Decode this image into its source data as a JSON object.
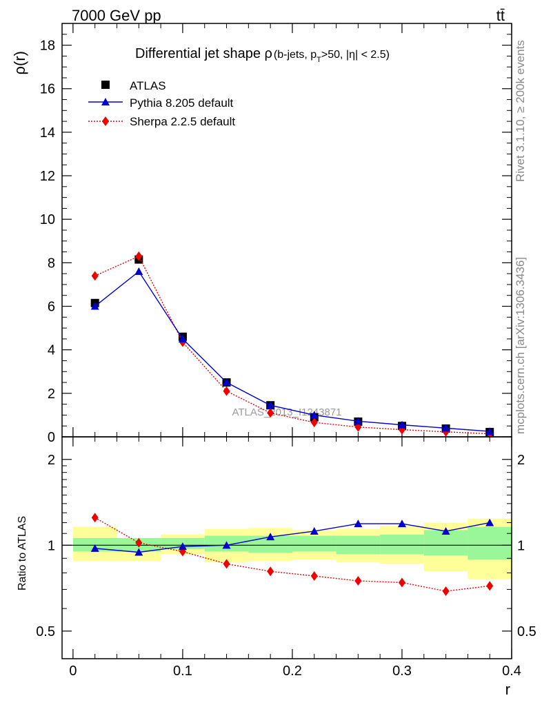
{
  "header": {
    "energy_label": "7000 GeV pp",
    "process_label": "tt̄"
  },
  "side_labels": {
    "rivet": "Rivet 3.1.10, ≥ 200k events",
    "mcplots": "mcplots.cern.ch [arXiv:1306.3436]"
  },
  "chart_data": [
    {
      "id": "main",
      "type": "line",
      "title_main": "Differential jet shape ρ",
      "title_p": "(b-jets, p",
      "title_sub": "T",
      "title_rest": ">50, |η| < 2.5)",
      "ylabel": "ρ(r)",
      "xlim": [
        -0.01,
        0.4
      ],
      "ylim": [
        0,
        19
      ],
      "yticks": [
        0,
        2,
        4,
        6,
        8,
        10,
        12,
        14,
        16,
        18
      ],
      "watermark": "ATLAS_2013_I1243871",
      "x": [
        0.02,
        0.06,
        0.1,
        0.14,
        0.18,
        0.22,
        0.26,
        0.3,
        0.34,
        0.38
      ],
      "series": [
        {
          "name": "ATLAS",
          "style": "data",
          "color": "#000000",
          "values": [
            6.15,
            8.15,
            4.6,
            2.5,
            1.45,
            0.9,
            0.7,
            0.5,
            0.38,
            0.22
          ]
        },
        {
          "name": "Pythia 8.205 default",
          "style": "solid",
          "marker": "triangle",
          "color": "#0000cc",
          "values": [
            6.0,
            7.6,
            4.5,
            2.5,
            1.45,
            1.0,
            0.72,
            0.55,
            0.4,
            0.25
          ]
        },
        {
          "name": "Sherpa 2.2.5 default",
          "style": "dotted",
          "marker": "diamond",
          "color": "#ee0000",
          "values": [
            7.4,
            8.3,
            4.35,
            2.1,
            1.1,
            0.66,
            0.45,
            0.33,
            0.23,
            0.14
          ]
        }
      ]
    },
    {
      "id": "ratio",
      "type": "line",
      "ylabel": "Ratio to ATLAS",
      "xlabel": "r",
      "xlim": [
        -0.01,
        0.4
      ],
      "ylim": [
        0.4,
        2.4
      ],
      "log_y": true,
      "yticks": [
        0.5,
        1,
        2
      ],
      "ytick_labels": [
        "0.5",
        "1",
        "2"
      ],
      "xticks": [
        0,
        0.1,
        0.2,
        0.3,
        0.4
      ],
      "xtick_labels": [
        "0",
        "0.1",
        "0.2",
        "0.3",
        "0.4"
      ],
      "band_bins": [
        0.0,
        0.04,
        0.08,
        0.12,
        0.16,
        0.2,
        0.24,
        0.28,
        0.32,
        0.36,
        0.4
      ],
      "band_inner_lo": [
        0.95,
        0.95,
        0.97,
        0.95,
        0.94,
        0.95,
        0.93,
        0.93,
        0.92,
        0.89
      ],
      "band_inner_hi": [
        1.06,
        1.06,
        1.06,
        1.08,
        1.08,
        1.08,
        1.08,
        1.09,
        1.13,
        1.16
      ],
      "band_outer_lo": [
        0.88,
        0.88,
        0.93,
        0.87,
        0.88,
        0.89,
        0.87,
        0.86,
        0.81,
        0.76
      ],
      "band_outer_hi": [
        1.16,
        1.05,
        1.09,
        1.14,
        1.15,
        1.13,
        1.14,
        1.17,
        1.2,
        1.24
      ],
      "x": [
        0.02,
        0.06,
        0.1,
        0.14,
        0.18,
        0.22,
        0.26,
        0.3,
        0.34,
        0.38
      ],
      "series": [
        {
          "name": "Pythia 8.205 default",
          "style": "solid",
          "marker": "triangle",
          "color": "#0000cc",
          "values": [
            0.975,
            0.945,
            0.99,
            1.0,
            1.07,
            1.12,
            1.19,
            1.19,
            1.12,
            1.2
          ]
        },
        {
          "name": "Sherpa 2.2.5 default",
          "style": "dotted",
          "marker": "diamond",
          "color": "#ee0000",
          "values": [
            1.25,
            1.02,
            0.95,
            0.86,
            0.81,
            0.78,
            0.75,
            0.74,
            0.69,
            0.72
          ]
        }
      ]
    }
  ],
  "colors": {
    "band_inner": "#99f799",
    "band_outer": "#ffff99",
    "watermark": "#999999"
  }
}
